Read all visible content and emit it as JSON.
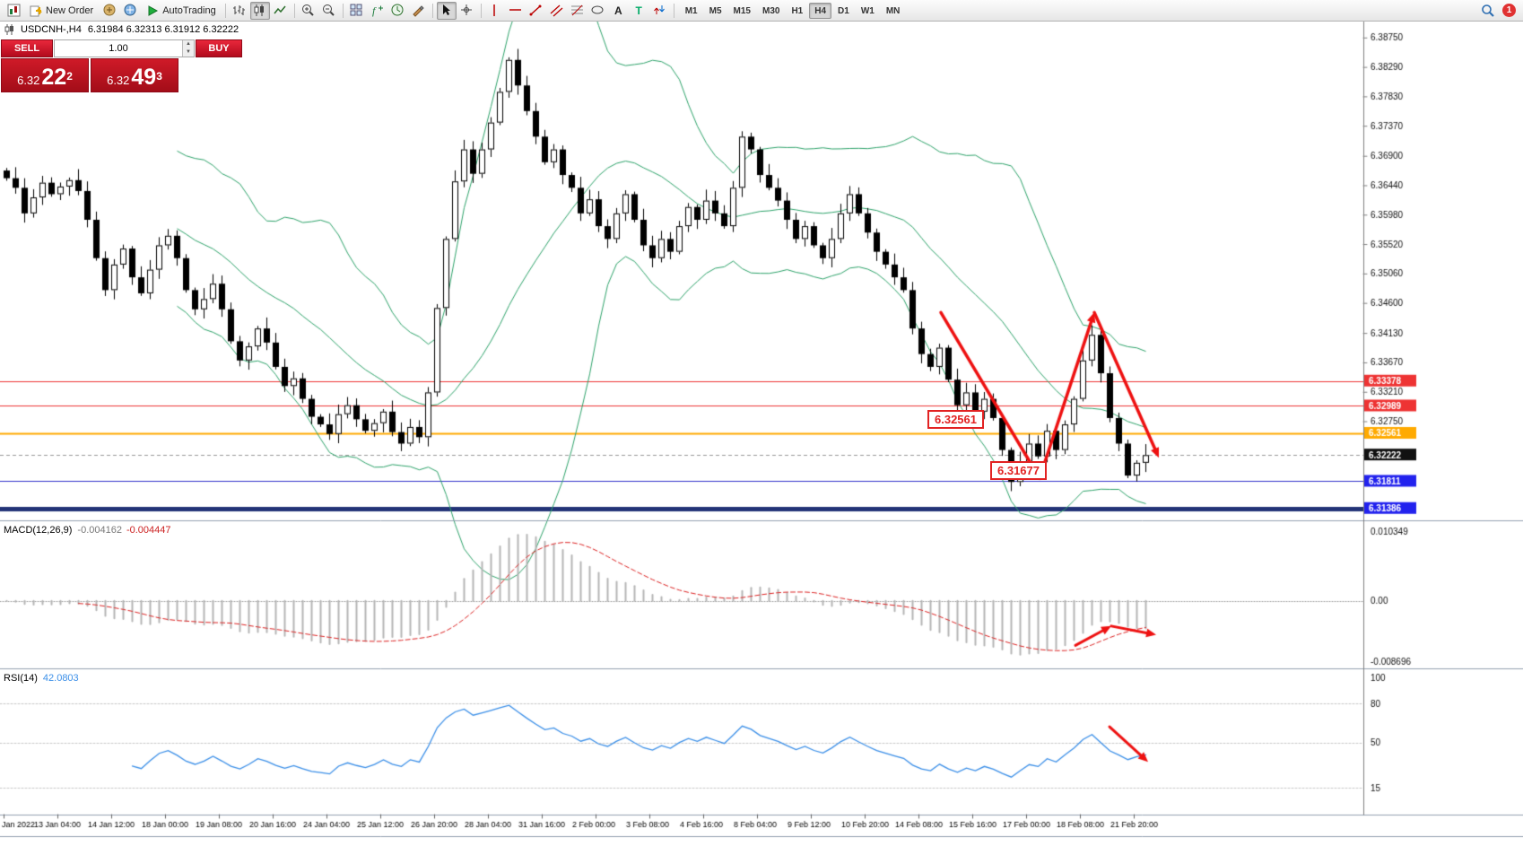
{
  "toolbar": {
    "new_order_label": "New Order",
    "autotrading_label": "AutoTrading",
    "timeframes": [
      {
        "label": "M1"
      },
      {
        "label": "M5"
      },
      {
        "label": "M15"
      },
      {
        "label": "M30"
      },
      {
        "label": "H1"
      },
      {
        "label": "H4",
        "active": true
      },
      {
        "label": "D1"
      },
      {
        "label": "W1"
      },
      {
        "label": "MN"
      }
    ],
    "notification_count": "1"
  },
  "order_panel": {
    "sell_label": "SELL",
    "buy_label": "BUY",
    "volume": "1.00",
    "bid": {
      "big": "6.32",
      "pips": "22",
      "pip": "2"
    },
    "ask": {
      "big": "6.32",
      "pips": "49",
      "pip": "3"
    }
  },
  "chart": {
    "title": "USDCNH-,H4",
    "ohlc": "6.31984 6.32313 6.31912 6.32222"
  },
  "chart_data": {
    "type": "candlestick",
    "symbol": "USDCNH-",
    "timeframe": "H4",
    "price_range": {
      "min": 6.312,
      "max": 6.39
    },
    "closes": [
      6.3655,
      6.364,
      6.36,
      6.3625,
      6.3648,
      6.363,
      6.3642,
      6.3652,
      6.3635,
      6.359,
      6.353,
      6.348,
      6.352,
      6.3545,
      6.35,
      6.3475,
      6.3512,
      6.355,
      6.3565,
      6.353,
      6.348,
      6.345,
      6.3466,
      6.349,
      6.345,
      6.34,
      6.337,
      6.3392,
      6.342,
      6.3398,
      6.336,
      6.333,
      6.3342,
      6.331,
      6.3282,
      6.327,
      6.3255,
      6.3286,
      6.33,
      6.3278,
      6.326,
      6.3272,
      6.329,
      6.3258,
      6.324,
      6.3266,
      6.325,
      6.332,
      6.3452,
      6.356,
      6.365,
      6.37,
      6.3662,
      6.37,
      6.3742,
      6.379,
      6.384,
      6.38,
      6.376,
      6.372,
      6.368,
      6.37,
      6.366,
      6.364,
      6.36,
      6.3622,
      6.358,
      6.356,
      6.36,
      6.363,
      6.359,
      6.355,
      6.353,
      6.356,
      6.354,
      6.358,
      6.361,
      6.359,
      6.362,
      6.36,
      6.358,
      6.364,
      6.372,
      6.37,
      6.366,
      6.364,
      6.362,
      6.359,
      6.356,
      6.358,
      6.355,
      6.353,
      6.356,
      6.36,
      6.363,
      6.36,
      6.357,
      6.354,
      6.352,
      6.35,
      6.348,
      6.342,
      6.338,
      6.336,
      6.339,
      6.334,
      6.33,
      6.332,
      6.329,
      6.331,
      6.328,
      6.323,
      6.318,
      6.321,
      6.324,
      6.322,
      6.326,
      6.323,
      6.327,
      6.331,
      6.337,
      6.341,
      6.335,
      6.328,
      6.324,
      6.319,
      6.321,
      6.3222
    ],
    "bollinger": {
      "period": 20,
      "deviation": 2
    },
    "price_axis_ticks": [
      "6.38750",
      "6.38290",
      "6.37830",
      "6.37370",
      "6.36900",
      "6.36440",
      "6.35980",
      "6.35520",
      "6.35060",
      "6.34600",
      "6.34130",
      "6.33670",
      "6.33210",
      "6.32750"
    ],
    "levels": [
      {
        "price": 6.33378,
        "color": "#ee3333",
        "style": "solid",
        "width": 1,
        "tag": "6.33378",
        "tag_bg": "#ee3333"
      },
      {
        "price": 6.32989,
        "color": "#ee3333",
        "style": "solid",
        "width": 1,
        "tag": "6.32989",
        "tag_bg": "#ee3333"
      },
      {
        "price": 6.32561,
        "color": "#ffaa00",
        "style": "solid",
        "width": 2,
        "tag": "6.32561",
        "tag_bg": "#ffaa00"
      },
      {
        "price": 6.32222,
        "color": "#999999",
        "style": "dash",
        "width": 1,
        "tag": "6.32222",
        "tag_bg": "#111111"
      },
      {
        "price": 6.31811,
        "color": "#3333cc",
        "style": "solid",
        "width": 1,
        "tag": "6.31811",
        "tag_bg": "#2222ee"
      },
      {
        "price": 6.31386,
        "color": "#223377",
        "style": "solid",
        "width": 5,
        "tag": "6.31386",
        "tag_bg": "#2222ee"
      }
    ],
    "chart_labels": [
      {
        "text": "6.32561",
        "i": 103,
        "p": 6.3292
      },
      {
        "text": "6.31677",
        "i": 110,
        "p": 6.3212
      }
    ],
    "arrows": {
      "main": [
        {
          "pts": [
            {
              "i": 104.5,
              "p": 6.3445
            },
            {
              "i": 115.5,
              "p": 6.3186
            }
          ]
        },
        {
          "pts": [
            {
              "i": 115.5,
              "p": 6.3186
            },
            {
              "i": 121.6,
              "p": 6.3445
            }
          ]
        },
        {
          "pts": [
            {
              "i": 121.6,
              "p": 6.3445
            },
            {
              "i": 128.8,
              "p": 6.3218
            }
          ]
        }
      ],
      "macd": [
        {
          "pts": [
            {
              "i": 119.5,
              "v": -0.0076
            },
            {
              "i": 123.5,
              "v": -0.0043
            },
            {
              "i": 128.5,
              "v": -0.0058
            }
          ]
        }
      ],
      "rsi": [
        {
          "pts": [
            {
              "i": 123.3,
              "v": 62
            },
            {
              "i": 127.6,
              "v": 35
            }
          ]
        }
      ]
    },
    "macd": {
      "name": "MACD(12,26,9)",
      "value_main": "-0.004162",
      "value_signal": "-0.004447",
      "fast": 12,
      "slow": 26,
      "signal": 9,
      "axis_max": "0.010349",
      "axis_zero": "0.00",
      "axis_min": "-0.008696"
    },
    "rsi": {
      "name": "RSI(14)",
      "value": "42.0803",
      "period": 14,
      "axis": [
        "100",
        "80",
        "50",
        "15"
      ],
      "levels": [
        80,
        50,
        15
      ]
    },
    "time_axis": [
      "Jan 2022",
      "13 Jan 04:00",
      "14 Jan 12:00",
      "18 Jan 00:00",
      "19 Jan 08:00",
      "20 Jan 16:00",
      "24 Jan 04:00",
      "25 Jan 12:00",
      "26 Jan 20:00",
      "28 Jan 04:00",
      "31 Jan 16:00",
      "2 Feb 00:00",
      "3 Feb 08:00",
      "4 Feb 16:00",
      "8 Feb 04:00",
      "9 Feb 12:00",
      "10 Feb 20:00",
      "14 Feb 08:00",
      "15 Feb 16:00",
      "17 Feb 00:00",
      "18 Feb 08:00",
      "21 Feb 20:00"
    ]
  }
}
